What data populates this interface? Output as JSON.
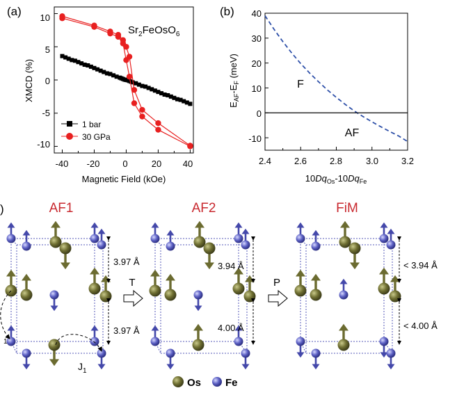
{
  "panel_a": {
    "label": "(a)",
    "compound": {
      "main": "Sr",
      "sub1": "2",
      "mid": "FeOsO",
      "sub2": "6"
    },
    "xlabel": "Magnetic Field (kOe)",
    "ylabel": "XMCD (%)",
    "xticks": [
      "-40",
      "-20",
      "0",
      "20",
      "40"
    ],
    "yticks": [
      "10",
      "5",
      "0",
      "-5",
      "-10"
    ],
    "legend": [
      "1 bar",
      "30 GPa"
    ]
  },
  "panel_b": {
    "label": "(b)",
    "xlabel": {
      "p1": "10",
      "dq1": "Dq",
      "s1": "Os",
      "p2": "-10",
      "dq2": "Dq",
      "s2": "Fe"
    },
    "ylabel": {
      "p1": "E",
      "s1": "AF",
      "p2": "-E",
      "s2": "F",
      "p3": " (meV)"
    },
    "xticks": [
      "2.4",
      "2.6",
      "2.8",
      "3.0",
      "3.2"
    ],
    "yticks": [
      "40",
      "30",
      "20",
      "10",
      "0",
      "-10"
    ],
    "region_F": "F",
    "region_AF": "AF"
  },
  "panel_c": {
    "label": ")",
    "structures": [
      {
        "title": "AF1",
        "upper": "3.97 Å",
        "lower": "3.97 Å"
      },
      {
        "title": "AF2",
        "upper": "3.94 Å",
        "lower": "4.00 Å"
      },
      {
        "title": "FiM",
        "upper": "< 3.94 Å",
        "lower": "< 4.00 Å"
      }
    ],
    "arrow1": "T",
    "arrow2": "P",
    "j1": "J",
    "j1_sub": "1",
    "j2_frag": "1",
    "legend_os": "Os",
    "legend_fe": "Fe",
    "colors": {
      "title": "#c8282e",
      "os": "#7b7b3a",
      "fe": "#5458b8"
    }
  },
  "chart_data": [
    {
      "type": "scatter",
      "title": "",
      "xlabel": "Magnetic Field (kOe)",
      "ylabel": "XMCD (%)",
      "xlim": [
        -45,
        42
      ],
      "ylim": [
        -11,
        11
      ],
      "series": [
        {
          "name": "1 bar",
          "color": "#000000",
          "marker": "square",
          "x": [
            -40,
            -38,
            -36,
            -34,
            -32,
            -30,
            -28,
            -26,
            -24,
            -22,
            -20,
            -18,
            -16,
            -14,
            -12,
            -10,
            -8,
            -6,
            -4,
            -3,
            -2,
            -1,
            0,
            1,
            2,
            3,
            4,
            6,
            8,
            10,
            12,
            14,
            16,
            18,
            20,
            22,
            24,
            26,
            28,
            30,
            32,
            34,
            36,
            38,
            40
          ],
          "y": [
            3.6,
            3.4,
            3.2,
            3.0,
            2.9,
            2.7,
            2.5,
            2.3,
            2.2,
            2.0,
            1.8,
            1.6,
            1.4,
            1.2,
            1.0,
            0.9,
            0.7,
            0.5,
            0.35,
            0.25,
            0.15,
            0.05,
            0.0,
            -0.05,
            -0.15,
            -0.25,
            -0.35,
            -0.5,
            -0.7,
            -0.9,
            -1.0,
            -1.2,
            -1.4,
            -1.6,
            -1.8,
            -2.0,
            -2.2,
            -2.3,
            -2.5,
            -2.7,
            -2.9,
            -3.0,
            -3.2,
            -3.4,
            -3.6
          ]
        },
        {
          "name": "30 GPa",
          "color": "#e82020",
          "marker": "circle",
          "loops": [
            {
              "x": [
                -40,
                -20,
                -10,
                -5,
                -2,
                0,
                2,
                5,
                10,
                20,
                40
              ],
              "y": [
                9.3,
                8.0,
                7.0,
                6.5,
                5.5,
                3.0,
                0.5,
                -3.5,
                -5.5,
                -7.5,
                -10.0
              ]
            },
            {
              "x": [
                -40,
                -20,
                -10,
                -5,
                -2,
                0,
                2,
                5,
                10,
                20,
                40
              ],
              "y": [
                9.6,
                8.2,
                7.3,
                6.8,
                6.0,
                5.0,
                3.5,
                -1.5,
                -4.5,
                -6.5,
                -9.9
              ]
            }
          ]
        }
      ]
    },
    {
      "type": "line",
      "title": "",
      "xlabel": "10DqOs-10DqFe",
      "ylabel": "EAF-EF (meV)",
      "xlim": [
        2.4,
        3.2
      ],
      "ylim": [
        -15,
        40
      ],
      "series": [
        {
          "style": "dashed",
          "color": "#2d4fa8",
          "x": [
            2.4,
            2.45,
            2.5,
            2.55,
            2.6,
            2.65,
            2.7,
            2.75,
            2.8,
            2.85,
            2.9,
            2.95,
            3.0,
            3.05,
            3.1,
            3.15,
            3.2
          ],
          "y": [
            39.0,
            33.6,
            28.6,
            24.0,
            19.8,
            16.0,
            12.5,
            9.2,
            6.2,
            3.4,
            0.8,
            -1.5,
            -3.6,
            -5.6,
            -7.5,
            -9.3,
            -11.5
          ]
        },
        {
          "style": "solid",
          "color": "#000000",
          "x": [
            2.4,
            3.2
          ],
          "y": [
            0,
            0
          ]
        }
      ]
    }
  ]
}
